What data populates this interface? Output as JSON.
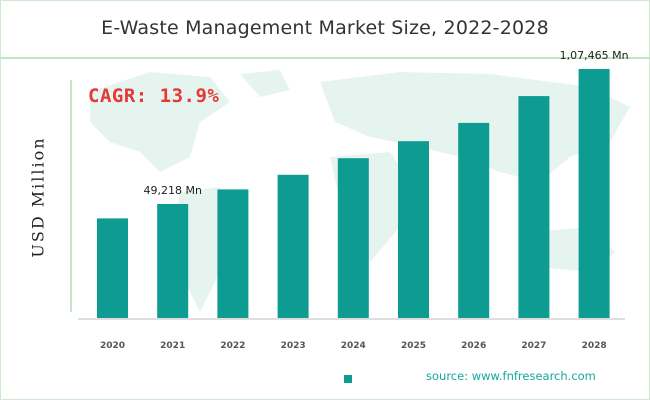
{
  "title": "E-Waste Management Market Size, 2022-2028",
  "cagr": "CAGR: 13.9%",
  "source": "source: www.fnfresearch.com",
  "legend_label": "",
  "colors": {
    "bar": "#0e9b92",
    "cagr": "#e53935",
    "source": "#14a89c",
    "accent_rule": "#bfe6bf"
  },
  "chart_data": {
    "type": "bar",
    "categories": [
      "2020",
      "2021",
      "2022",
      "2023",
      "2024",
      "2025",
      "2026",
      "2027",
      "2028"
    ],
    "values": [
      43000,
      49218,
      55500,
      61800,
      69000,
      76300,
      84200,
      95800,
      107465
    ],
    "ylabel": "USD Million",
    "xlabel": "",
    "ylim": [
      0,
      120000
    ],
    "grid": false,
    "data_labels": [
      {
        "category": "2021",
        "text": "49,218 Mn"
      },
      {
        "category": "2028",
        "text": "1,07,465 Mn"
      }
    ]
  }
}
